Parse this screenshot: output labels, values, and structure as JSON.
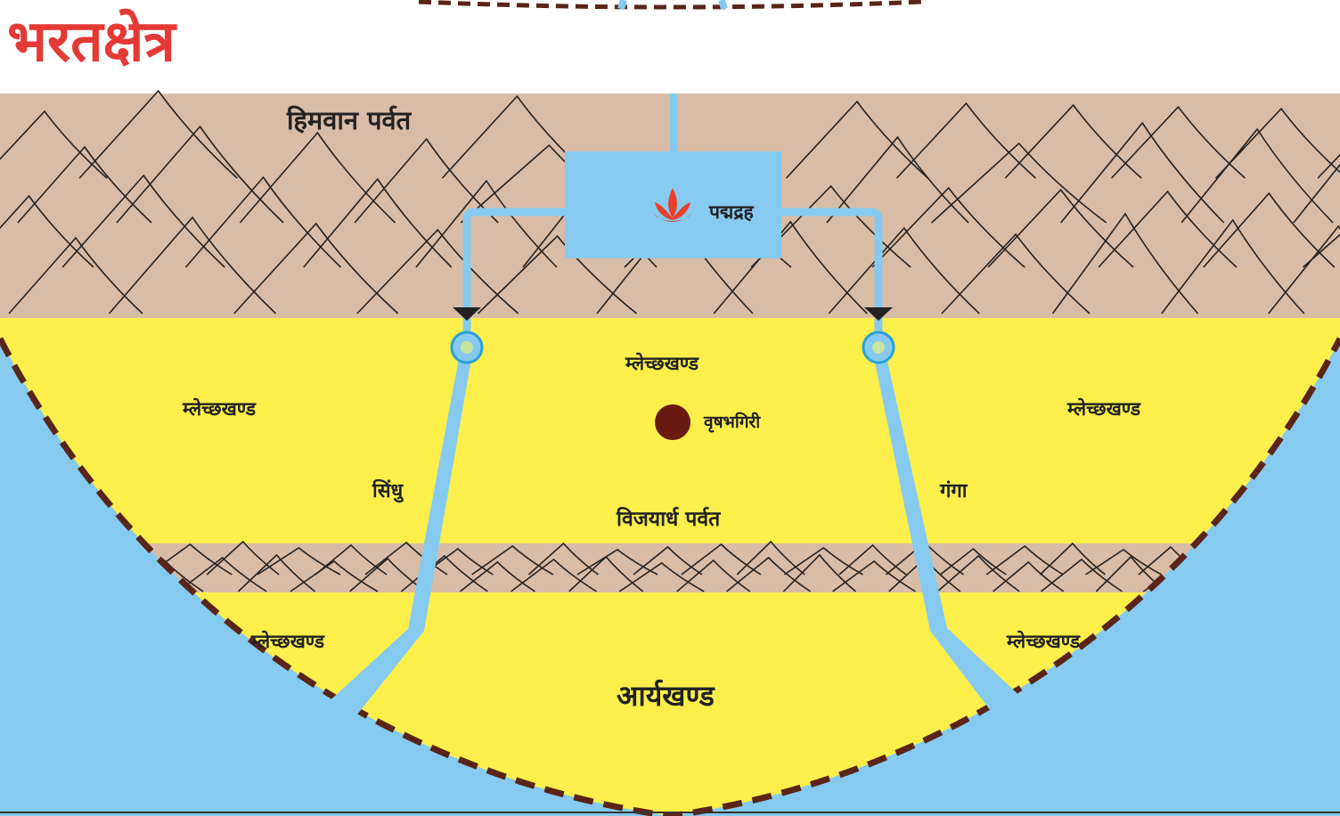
{
  "title": "भरतक्षेत्र",
  "labels": {
    "himvan": "हिमवान पर्वत",
    "padmadrah": "पद्मद्रह",
    "mlechh_top_center": "म्लेच्छखण्ड",
    "mlechh_upper_left": "म्लेच्छखण्ड",
    "mlechh_upper_right": "म्लेच्छखण्ड",
    "vrishabhagiri": "वृषभगिरी",
    "sindhu": "सिंधु",
    "ganga": "गंगा",
    "vijayardh": "विजयार्ध पर्वत",
    "mlechh_lower_left": "म्लेच्छखण्ड",
    "mlechh_lower_right": "म्लेच्छखण्ड",
    "aryakhand": "आर्यखण्ड"
  },
  "colors": {
    "title": "#e53935",
    "mountain": "#d9bca6",
    "land": "#fcef4c",
    "water": "#86caf0",
    "border": "#5a2418",
    "vrishabhagiri_dot": "#6b1a12",
    "lotus": "#e8402a"
  },
  "icons": {
    "lotus": "lotus-icon"
  }
}
